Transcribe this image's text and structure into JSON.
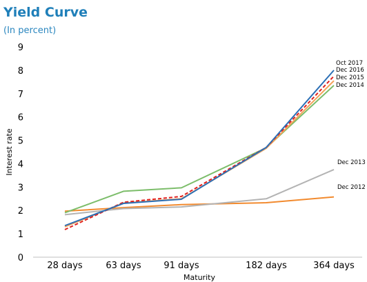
{
  "chart_data": {
    "type": "line",
    "title": "Yield Curve",
    "subtitle": "(In percent)",
    "xlabel": "Maturity",
    "ylabel": "Interest rate",
    "categories": [
      "28 days",
      "63 days",
      "91 days",
      "182 days",
      "364 days"
    ],
    "ylim": [
      0,
      9
    ],
    "yticks": [
      0,
      1,
      2,
      3,
      4,
      5,
      6,
      7,
      8,
      9
    ],
    "grid": false,
    "series": [
      {
        "name": "Dec 2012",
        "values": [
          1.97,
          2.12,
          2.25,
          2.33,
          2.58
        ],
        "color": "#f28a2e",
        "dashed": false
      },
      {
        "name": "Dec 2013",
        "values": [
          1.82,
          2.08,
          2.15,
          2.5,
          3.75
        ],
        "color": "#b3b3b3",
        "dashed": false
      },
      {
        "name": "Dec 2014",
        "values": [
          1.9,
          2.82,
          2.97,
          4.68,
          7.35
        ],
        "color": "#7cbd6a",
        "dashed": false
      },
      {
        "name": "Dec 2015",
        "values": [
          1.3,
          2.32,
          2.5,
          4.66,
          7.55
        ],
        "color": "#f4a35a",
        "dashed": false
      },
      {
        "name": "Dec 2016",
        "values": [
          1.18,
          2.35,
          2.6,
          4.7,
          7.75
        ],
        "color": "#e0201d",
        "dashed": true
      },
      {
        "name": "Oct 2017",
        "values": [
          1.35,
          2.3,
          2.48,
          4.7,
          8.0
        ],
        "color": "#2b6fb5",
        "dashed": false
      }
    ]
  }
}
